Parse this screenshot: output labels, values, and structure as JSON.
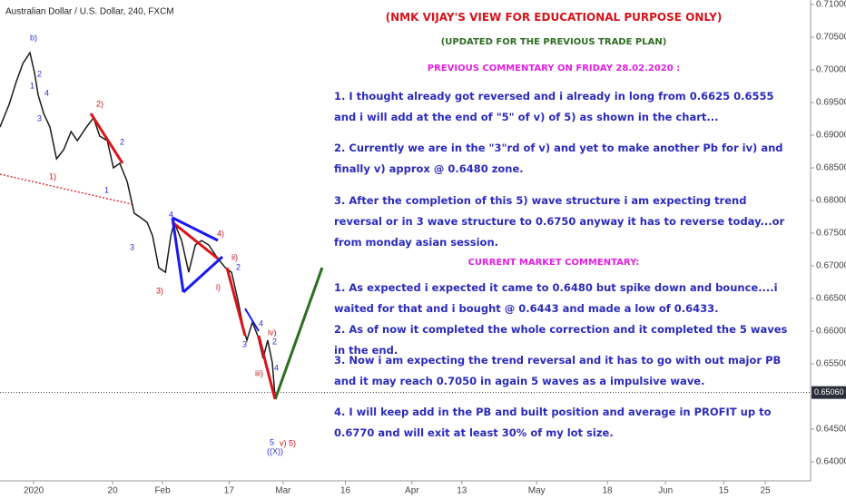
{
  "chart_data": {
    "type": "line",
    "title": "Australian Dollar / U.S. Dollar, 240, FXCM",
    "x": [
      -7.1,
      -4.9,
      -3.2,
      -1.6,
      0.1,
      1.2,
      2.1,
      3.4,
      4.9,
      6.5,
      8.2,
      10.0,
      11.5,
      13.7,
      15.4,
      16.9,
      18.7,
      20.2,
      21.7,
      23.5,
      25.2,
      26.8,
      28.3,
      29.6,
      31.1,
      32.7,
      34.0,
      34.8,
      36.6,
      38.3,
      39.9,
      41.4,
      43.1,
      45.3,
      47.1,
      48.6,
      50.1,
      51.4,
      52.3,
      53.6,
      54.9,
      56.2,
      57.3,
      58.4,
      59.1
    ],
    "series": [
      {
        "color": "#1a1a1a",
        "values": [
          0.69125,
          0.69472,
          0.69819,
          0.70097,
          0.70263,
          0.69958,
          0.69611,
          0.69333,
          0.69125,
          0.68638,
          0.68777,
          0.69055,
          0.68916,
          0.69125,
          0.69264,
          0.68986,
          0.68916,
          0.685,
          0.68569,
          0.68291,
          0.67805,
          0.67736,
          0.67666,
          0.67458,
          0.66972,
          0.66902,
          0.67458,
          0.67666,
          0.67388,
          0.66902,
          0.67319,
          0.67388,
          0.67319,
          0.67111,
          0.66972,
          0.66902,
          0.66486,
          0.66069,
          0.65861,
          0.66138,
          0.6593,
          0.65583,
          0.65861,
          0.65513,
          0.64958
        ]
      }
    ],
    "projection": {
      "x": [
        59.1,
        70.4
      ],
      "values": [
        0.64958,
        0.66972
      ],
      "color": "#2a6e1f"
    },
    "last_price": {
      "value": 0.6506,
      "label": "0.65060"
    },
    "xlim": [
      -7.1,
      187.9
    ],
    "xticks": [
      {
        "value": 1,
        "label": "2020"
      },
      20,
      {
        "value": 32,
        "label": "Feb"
      },
      {
        "value": 48,
        "label": "17"
      },
      {
        "value": 61,
        "label": "Mar"
      },
      {
        "value": 76,
        "label": "16"
      },
      {
        "value": 92,
        "label": "Apr"
      },
      {
        "value": 104,
        "label": "13"
      },
      {
        "value": 122,
        "label": "May"
      },
      {
        "value": 139,
        "label": "18"
      },
      {
        "value": 153,
        "label": "Jun"
      },
      {
        "value": 167,
        "label": "15"
      },
      {
        "value": 177,
        "label": "25"
      }
    ],
    "ylim": [
      0.6343,
      0.7107
    ],
    "yticks": [
      {
        "value": 0.71,
        "label": "0.71000"
      },
      {
        "value": 0.705,
        "label": "0.70500"
      },
      {
        "value": 0.7,
        "label": "0.70000"
      },
      {
        "value": 0.695,
        "label": "0.69500"
      },
      {
        "value": 0.69,
        "label": "0.69000"
      },
      {
        "value": 0.685,
        "label": "0.68500"
      },
      {
        "value": 0.68,
        "label": "0.68000"
      },
      {
        "value": 0.675,
        "label": "0.67500"
      },
      {
        "value": 0.67,
        "label": "0.67000"
      },
      {
        "value": 0.665,
        "label": "0.66500"
      },
      {
        "value": 0.66,
        "label": "0.66000"
      },
      {
        "value": 0.655,
        "label": "0.65500"
      },
      {
        "value": 0.65,
        "label": "0.65000"
      },
      {
        "value": 0.645,
        "label": "0.64500"
      },
      {
        "value": 0.64,
        "label": "0.64000"
      }
    ]
  },
  "annotations": [
    "b)",
    "2",
    "1",
    "4",
    "3",
    "1)",
    "2)",
    "2",
    "1",
    "4",
    "3",
    "3)",
    "4)",
    "ii)",
    "2",
    "i)",
    "4",
    "iv)",
    "2",
    "3",
    "4",
    "iii)",
    "5",
    "v) 5)",
    "((X))"
  ],
  "commentary": {
    "title": "(NMK VIJAY'S VIEW FOR EDUCATIONAL PURPOSE ONLY)",
    "subtitle": "(UPDATED FOR THE PREVIOUS TRADE PLAN)",
    "previous_heading": "PREVIOUS COMMENTARY ON FRIDAY 28.02.2020 :",
    "previous_items": [
      "1. I thought already got reversed and i already in long from 0.6625 0.6555 and i will add at the end of \"5\" of v) of 5) as shown in the chart...",
      "2. Currently we are in the \"3\"rd of v) and yet to make another Pb for iv) and finally v) approx @ 0.6480 zone.",
      "3. After the completion of this 5) wave structure i am expecting trend reversal or in 3 wave structure to 0.6750 anyway it has to reverse today...or from monday asian session."
    ],
    "current_heading": "CURRENT MARKET COMMENTARY:",
    "current_items": [
      "1. As expected i expected it came to 0.6480 but spike down and bounce....i waited for that and i bought @ 0.6443 and made a low of 0.6433.",
      "2. As of now it completed the whole correction and it completed the 5 waves in the end.",
      "3. Now i am expecting the trend reversal and it has to go with out major PB and it may reach 0.7050 in again 5 waves as a impulsive wave.",
      "4. I will keep add in the PB and built position and average in PROFIT up to 0.6770 and will exit at least 30% of my lot size."
    ]
  }
}
